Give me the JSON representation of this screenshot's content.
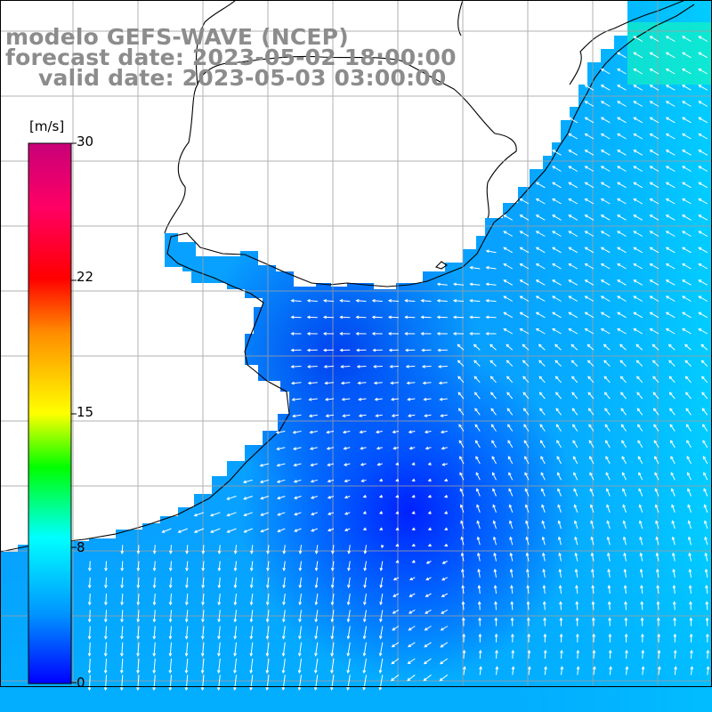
{
  "title": {
    "line1": "modelo GEFS-WAVE (NCEP)",
    "line2": "forecast date: 2023-05-02 18:00:00",
    "line3": "valid date: 2023-05-03 03:00:00"
  },
  "colorbar": {
    "unit": "[m/s]",
    "ticks": [
      "30",
      "22",
      "15",
      "8",
      "0"
    ],
    "tick_values": [
      30,
      22,
      15,
      8,
      0
    ],
    "range": [
      0,
      30
    ],
    "colors": [
      "#0000ff",
      "#0096ff",
      "#00ffff",
      "#00ff00",
      "#ffff00",
      "#ff8c00",
      "#ff0000",
      "#ff0064",
      "#c80078"
    ]
  },
  "map": {
    "background_sea": "#0096ff",
    "land": "#ffffff",
    "coastline": "#000000",
    "grid": "#b4b4b4",
    "vector_color": "#ffffff",
    "overlay_title_color": "#8c8c8c"
  }
}
